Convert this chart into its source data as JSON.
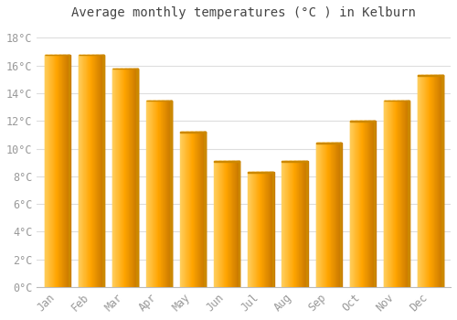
{
  "months": [
    "Jan",
    "Feb",
    "Mar",
    "Apr",
    "May",
    "Jun",
    "Jul",
    "Aug",
    "Sep",
    "Oct",
    "Nov",
    "Dec"
  ],
  "values": [
    16.8,
    16.8,
    15.8,
    13.5,
    11.2,
    9.1,
    8.3,
    9.1,
    10.4,
    12.0,
    13.5,
    15.3
  ],
  "bar_color_left": "#FFD060",
  "bar_color_mid": "#FFA500",
  "bar_color_right": "#E07800",
  "bar_edge_color": "#CC8800",
  "background_color": "#FFFFFF",
  "grid_color": "#DDDDDD",
  "title": "Average monthly temperatures (°C ) in Kelburn",
  "ylim": [
    0,
    19
  ],
  "yticks": [
    0,
    2,
    4,
    6,
    8,
    10,
    12,
    14,
    16,
    18
  ],
  "ytick_labels": [
    "0°C",
    "2°C",
    "4°C",
    "6°C",
    "8°C",
    "10°C",
    "12°C",
    "14°C",
    "16°C",
    "18°C"
  ],
  "title_fontsize": 10,
  "tick_fontsize": 8.5,
  "tick_color": "#999999",
  "title_color": "#444444",
  "bar_width": 0.75
}
